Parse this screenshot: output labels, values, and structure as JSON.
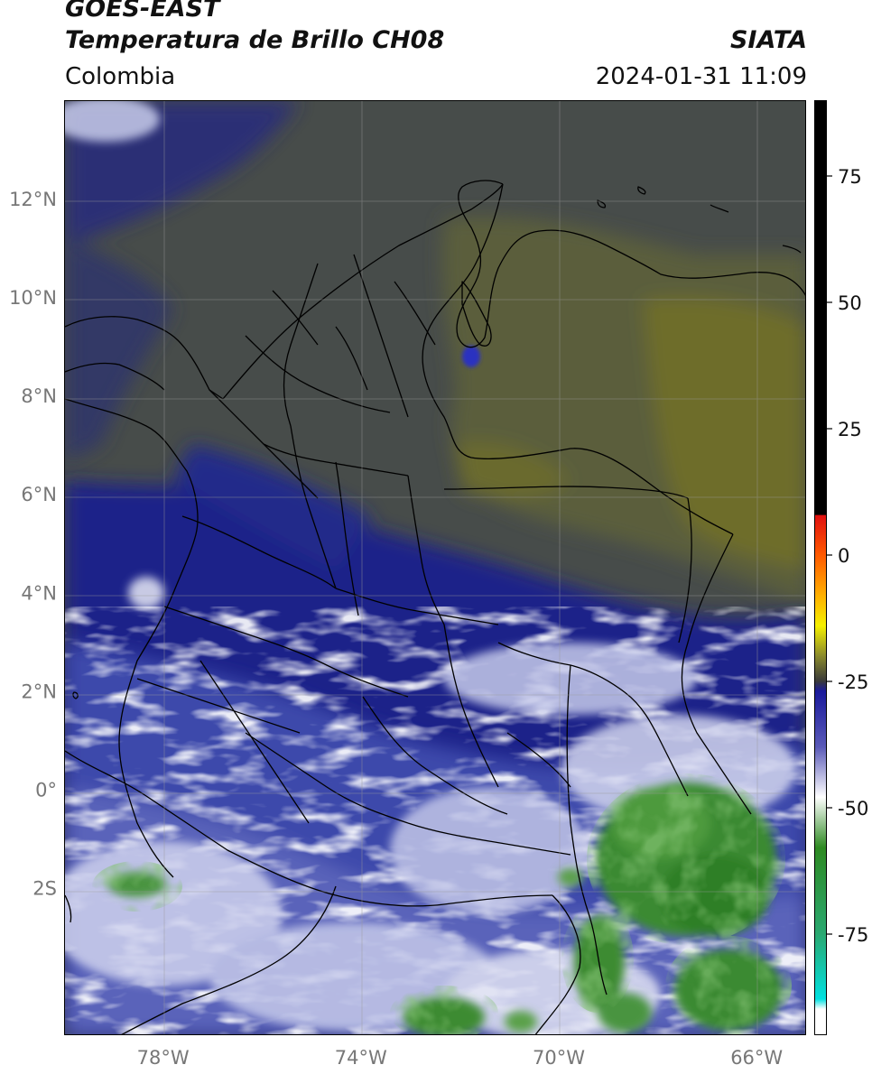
{
  "header": {
    "satellite": "GOES-EAST",
    "product": "Temperatura de Brillo CH08",
    "organization": "SIATA",
    "region": "Colombia",
    "datetime": "2024-01-31 11:09"
  },
  "map": {
    "lon_range": [
      -80,
      -65
    ],
    "lat_range": [
      -5,
      14
    ],
    "gridlines": true,
    "lat_ticks": [
      {
        "value": 12,
        "label": "12°N"
      },
      {
        "value": 10,
        "label": "10°N"
      },
      {
        "value": 8,
        "label": "8°N"
      },
      {
        "value": 6,
        "label": "6°N"
      },
      {
        "value": 4,
        "label": "4°N"
      },
      {
        "value": 2,
        "label": "2°N"
      },
      {
        "value": 0,
        "label": "0°"
      },
      {
        "value": -2,
        "label": "2S"
      }
    ],
    "lon_ticks": [
      {
        "value": -78,
        "label": "78°W"
      },
      {
        "value": -74,
        "label": "74°W"
      },
      {
        "value": -70,
        "label": "70°W"
      },
      {
        "value": -66,
        "label": "66°W"
      }
    ],
    "colors": {
      "warm_gray": "#4a4f4c",
      "olive": "#6b6b2a",
      "navy": "#1c2486",
      "blue": "#3a46a8",
      "lavender": "#b9bde2",
      "white": "#f2f3fa",
      "green": "#3c8a2e",
      "border": "#000000",
      "grid": "#9a9a9a"
    }
  },
  "colorbar": {
    "range": [
      -95,
      90
    ],
    "ticks": [
      {
        "value": 75,
        "label": "75"
      },
      {
        "value": 50,
        "label": "50"
      },
      {
        "value": 25,
        "label": "25"
      },
      {
        "value": 0,
        "label": "0"
      },
      {
        "value": -25,
        "label": "-25"
      },
      {
        "value": -50,
        "label": "-50"
      },
      {
        "value": -75,
        "label": "-75"
      }
    ],
    "stops": [
      {
        "value": 90,
        "color": "#000000"
      },
      {
        "value": 8,
        "color": "#000000"
      },
      {
        "value": 7.9,
        "color": "#e01010"
      },
      {
        "value": 0,
        "color": "#ff5a00"
      },
      {
        "value": -8,
        "color": "#ffb000"
      },
      {
        "value": -14,
        "color": "#f5f000"
      },
      {
        "value": -20,
        "color": "#8a8a2c"
      },
      {
        "value": -25,
        "color": "#3a3a3a"
      },
      {
        "value": -27,
        "color": "#1a1a9c"
      },
      {
        "value": -38,
        "color": "#5a5ab8"
      },
      {
        "value": -48,
        "color": "#ffffff"
      },
      {
        "value": -58,
        "color": "#2e8a22"
      },
      {
        "value": -75,
        "color": "#2aa870"
      },
      {
        "value": -88,
        "color": "#00e0e0"
      },
      {
        "value": -90,
        "color": "#ffffff"
      },
      {
        "value": -95,
        "color": "#ffffff"
      }
    ]
  }
}
